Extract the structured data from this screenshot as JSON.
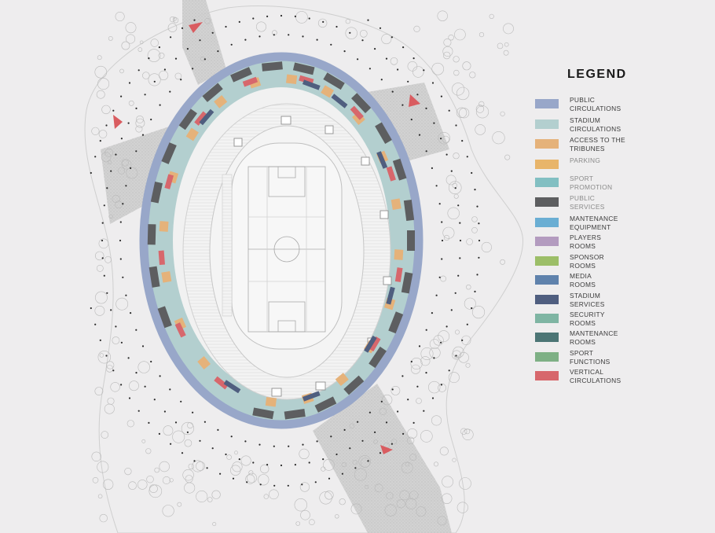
{
  "legend": {
    "title": "LEGEND",
    "items": [
      {
        "key": "public-circulations",
        "label": "PUBLIC\nCIRCULATIONS",
        "color": "#98a7c9"
      },
      {
        "key": "stadium-circulations",
        "label": "STADIUM\nCIRCULATIONS",
        "color": "#b3cfcf"
      },
      {
        "key": "access-to-the-tribunes",
        "label": "ACCESS TO THE\nTRIBUNES",
        "color": "#e5b27a"
      },
      {
        "key": "parking",
        "label": "PARKING",
        "color": "#e8b56a",
        "muted": true
      },
      {
        "key": "sport-promotion",
        "label": "SPORT\nPROMOTION",
        "color": "#82bfc2",
        "muted": true
      },
      {
        "key": "public-services",
        "label": "PUBLIC\nSERVICES",
        "color": "#5d5e60",
        "muted": true
      },
      {
        "key": "mantenance-equipment",
        "label": "MANTENANCE\nEQUIPMENT",
        "color": "#6aaed3"
      },
      {
        "key": "players-rooms",
        "label": "PLAYERS\nROOMS",
        "color": "#b39bbf"
      },
      {
        "key": "sponsor-rooms",
        "label": "SPONSOR\nROOMS",
        "color": "#9cbe68"
      },
      {
        "key": "media-rooms",
        "label": "MEDIA\nROOMS",
        "color": "#5f82ac"
      },
      {
        "key": "stadium-services",
        "label": "STADIUM\nSERVICES",
        "color": "#4f5e7f"
      },
      {
        "key": "security-rooms",
        "label": "SECURITY\nROOMS",
        "color": "#7fb5a3"
      },
      {
        "key": "mantenance-rooms",
        "label": "MANTENANCE\nROOMS",
        "color": "#4c7575"
      },
      {
        "key": "sport-functions",
        "label": "SPORT\nFUNCTIONS",
        "color": "#7eb085"
      },
      {
        "key": "vertical-circulations",
        "label": "VERTICAL\nCIRCULATIONS",
        "color": "#d7676c"
      }
    ]
  },
  "plan": {
    "entrance_color": "#d95c60",
    "path_color": "#c8c8c8",
    "tree_color": "#b9b9b9",
    "stands_color": "#f1f1f1",
    "field_color": "#f7f7f7"
  }
}
